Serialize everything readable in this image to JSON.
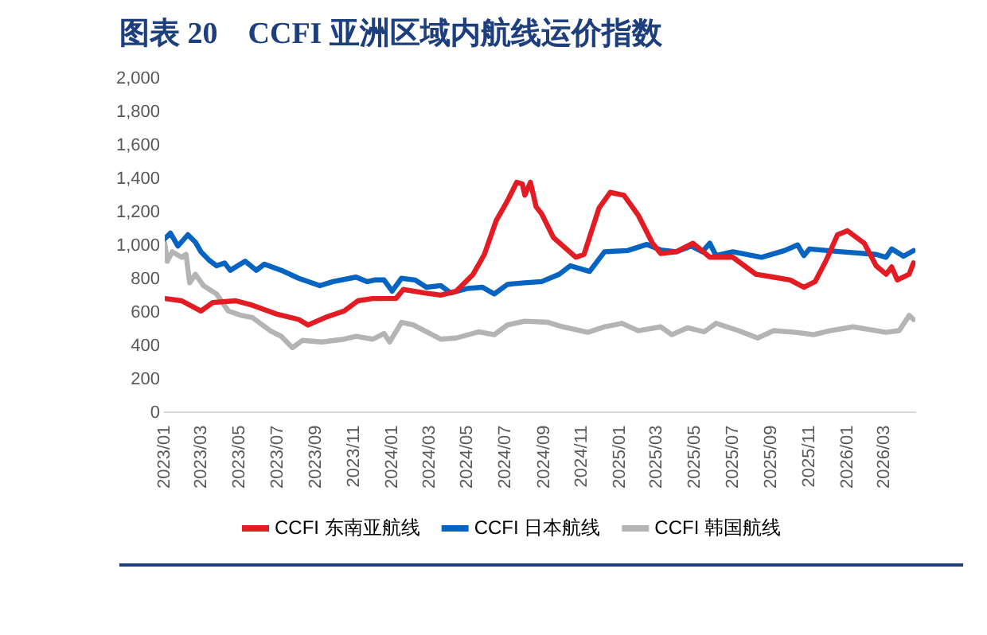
{
  "chart_data": {
    "type": "line",
    "title": "图表 20　CCFI 亚洲区域内航线运价指数",
    "xlim": [
      "2023-01-01",
      "2026-04-20"
    ],
    "xticks": [
      {
        "value": "2023-01",
        "label": "2023/01"
      },
      {
        "value": "2023-03",
        "label": "2023/03"
      },
      {
        "value": "2023-05",
        "label": "2023/05"
      },
      {
        "value": "2023-07",
        "label": "2023/07"
      },
      {
        "value": "2023-09",
        "label": "2023/09"
      },
      {
        "value": "2023-11",
        "label": "2023/11"
      },
      {
        "value": "2024-01",
        "label": "2024/01"
      },
      {
        "value": "2024-03",
        "label": "2024/03"
      },
      {
        "value": "2024-05",
        "label": "2024/05"
      },
      {
        "value": "2024-07",
        "label": "2024/07"
      },
      {
        "value": "2024-09",
        "label": "2024/09"
      },
      {
        "value": "2024-11",
        "label": "2024/11"
      },
      {
        "value": "2025-01",
        "label": "2025/01"
      },
      {
        "value": "2025-03",
        "label": "2025/03"
      },
      {
        "value": "2025-05",
        "label": "2025/05"
      },
      {
        "value": "2025-07",
        "label": "2025/07"
      },
      {
        "value": "2025-09",
        "label": "2025/09"
      },
      {
        "value": "2025-11",
        "label": "2025/11"
      },
      {
        "value": "2026-01",
        "label": "2026/01"
      },
      {
        "value": "2026-03",
        "label": "2026/03"
      }
    ],
    "ylim": [
      0,
      2000
    ],
    "yticks": [
      0,
      200,
      400,
      600,
      800,
      {
        "value": 1000,
        "label": "1,000"
      },
      {
        "value": 1200,
        "label": "1,200"
      },
      {
        "value": 1400,
        "label": "1,400"
      },
      {
        "value": 1600,
        "label": "1,600"
      },
      {
        "value": 1800,
        "label": "1,800"
      },
      {
        "value": 2000,
        "label": "2,000"
      }
    ],
    "grid": false,
    "legend": "bottom",
    "marker": "none",
    "line_style": "solid",
    "series": [
      {
        "name": "CCFI 东南亚航线",
        "color": "#e31b23",
        "x": [
          "2023-01-01",
          "2023-01-28",
          "2023-02-28",
          "2023-03-19",
          "2023-04-25",
          "2023-05-22",
          "2023-06-28",
          "2023-08-04",
          "2023-08-19",
          "2023-09-19",
          "2023-10-16",
          "2023-11-07",
          "2023-12-01",
          "2024-01-07",
          "2024-01-19",
          "2024-02-22",
          "2024-03-19",
          "2024-04-13",
          "2024-05-10",
          "2024-05-28",
          "2024-06-16",
          "2024-07-04",
          "2024-07-19",
          "2024-07-28",
          "2024-08-01",
          "2024-08-10",
          "2024-08-19",
          "2024-08-28",
          "2024-09-16",
          "2024-10-22",
          "2024-11-04",
          "2024-11-28",
          "2024-12-16",
          "2025-01-07",
          "2025-01-30",
          "2025-02-22",
          "2025-03-07",
          "2025-04-01",
          "2025-04-28",
          "2025-05-25",
          "2025-07-01",
          "2025-08-07",
          "2025-09-04",
          "2025-10-01",
          "2025-10-23",
          "2025-11-10",
          "2025-11-28",
          "2025-12-16",
          "2026-01-01",
          "2026-01-28",
          "2026-02-16",
          "2026-03-04",
          "2026-03-13",
          "2026-03-22",
          "2026-04-10",
          "2026-04-17"
        ],
        "values": [
          684,
          670,
          609,
          660,
          670,
          643,
          592,
          558,
          525,
          575,
          609,
          670,
          684,
          684,
          738,
          717,
          704,
          728,
          829,
          948,
          1150,
          1269,
          1381,
          1370,
          1303,
          1381,
          1235,
          1191,
          1049,
          931,
          948,
          1225,
          1320,
          1303,
          1184,
          1015,
          954,
          964,
          1015,
          931,
          931,
          829,
          812,
          795,
          751,
          785,
          914,
          1066,
          1090,
          1015,
          880,
          829,
          873,
          795,
          829,
          897
        ]
      },
      {
        "name": "CCFI 日本航线",
        "color": "#0563c1",
        "x": [
          "2023-01-01",
          "2023-01-10",
          "2023-01-22",
          "2023-02-07",
          "2023-02-19",
          "2023-02-28",
          "2023-03-13",
          "2023-03-25",
          "2023-04-07",
          "2023-04-16",
          "2023-05-10",
          "2023-05-28",
          "2023-06-10",
          "2023-07-07",
          "2023-08-04",
          "2023-09-07",
          "2023-09-28",
          "2023-11-04",
          "2023-11-22",
          "2023-12-04",
          "2023-12-19",
          "2024-01-01",
          "2024-01-16",
          "2024-02-07",
          "2024-02-25",
          "2024-03-19",
          "2024-04-04",
          "2024-05-01",
          "2024-05-25",
          "2024-06-13",
          "2024-07-04",
          "2024-07-13",
          "2024-08-01",
          "2024-08-28",
          "2024-09-25",
          "2024-10-13",
          "2024-11-13",
          "2024-12-07",
          "2025-01-13",
          "2025-02-13",
          "2025-03-07",
          "2025-04-01",
          "2025-04-25",
          "2025-05-13",
          "2025-05-25",
          "2025-06-04",
          "2025-07-01",
          "2025-08-16",
          "2025-09-22",
          "2025-10-13",
          "2025-10-23",
          "2025-11-01",
          "2025-12-22",
          "2026-02-16",
          "2026-03-04",
          "2026-03-13",
          "2026-04-01",
          "2026-04-17"
        ],
        "values": [
          1042,
          1076,
          998,
          1066,
          1022,
          964,
          914,
          880,
          897,
          853,
          907,
          853,
          890,
          853,
          805,
          761,
          785,
          812,
          785,
          795,
          795,
          728,
          805,
          795,
          751,
          761,
          717,
          744,
          751,
          711,
          768,
          772,
          778,
          785,
          829,
          880,
          846,
          964,
          971,
          1008,
          975,
          964,
          998,
          964,
          1015,
          941,
          964,
          931,
          971,
          1005,
          941,
          981,
          964,
          948,
          931,
          981,
          937,
          971
        ]
      },
      {
        "name": "CCFI 韩国航线",
        "color": "#b4b4b4",
        "x": [
          "2023-01-01",
          "2023-01-05",
          "2023-01-13",
          "2023-01-28",
          "2023-02-04",
          "2023-02-10",
          "2023-02-19",
          "2023-03-04",
          "2023-03-25",
          "2023-04-13",
          "2023-05-04",
          "2023-05-22",
          "2023-06-19",
          "2023-07-07",
          "2023-07-25",
          "2023-08-10",
          "2023-09-10",
          "2023-10-16",
          "2023-11-04",
          "2023-12-01",
          "2023-12-19",
          "2023-12-28",
          "2024-01-16",
          "2024-02-04",
          "2024-02-22",
          "2024-03-19",
          "2024-04-13",
          "2024-05-19",
          "2024-06-13",
          "2024-07-04",
          "2024-08-01",
          "2024-09-07",
          "2024-10-01",
          "2024-11-10",
          "2024-12-07",
          "2025-01-04",
          "2025-01-30",
          "2025-03-07",
          "2025-03-25",
          "2025-04-19",
          "2025-05-16",
          "2025-06-04",
          "2025-07-10",
          "2025-08-10",
          "2025-09-04",
          "2025-10-10",
          "2025-11-07",
          "2025-12-04",
          "2026-01-10",
          "2026-02-07",
          "2026-03-04",
          "2026-03-25",
          "2026-04-10",
          "2026-04-17"
        ],
        "values": [
          1015,
          907,
          964,
          931,
          948,
          778,
          829,
          761,
          711,
          609,
          582,
          569,
          491,
          457,
          389,
          433,
          423,
          440,
          457,
          440,
          474,
          423,
          541,
          525,
          491,
          440,
          447,
          484,
          467,
          525,
          548,
          541,
          514,
          481,
          514,
          535,
          491,
          514,
          467,
          508,
          484,
          535,
          491,
          447,
          491,
          481,
          467,
          491,
          514,
          497,
          481,
          491,
          582,
          558
        ]
      }
    ]
  }
}
